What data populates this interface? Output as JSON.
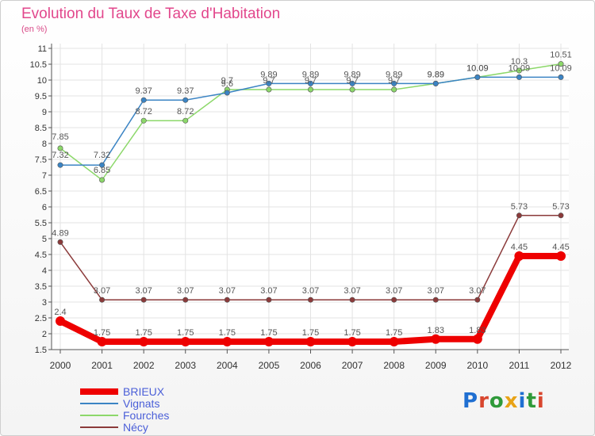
{
  "header": {
    "title": "Evolution du Taux de Taxe d'Habitation",
    "subtitle": "(en %)"
  },
  "brand": {
    "text": "Proxiti",
    "colors": [
      "#1f6fd1",
      "#d8462e",
      "#2f9a3a",
      "#e8a317",
      "#1f6fd1",
      "#2f9a3a",
      "#d8462e"
    ]
  },
  "chart_data": {
    "type": "line",
    "title": "Evolution du Taux de Taxe d'Habitation",
    "ylabel": "(en %)",
    "xlabel": "",
    "ylim": [
      1.5,
      11
    ],
    "yticks": [
      "1.5",
      "2",
      "2.5",
      "3",
      "3.5",
      "4",
      "4.5",
      "5",
      "5.5",
      "6",
      "6.5",
      "7",
      "7.5",
      "8",
      "8.5",
      "9",
      "9.5",
      "10",
      "10.5",
      "11"
    ],
    "categories": [
      "2000",
      "2001",
      "2002",
      "2003",
      "2004",
      "2005",
      "2006",
      "2007",
      "2008",
      "2009",
      "2010",
      "2011",
      "2012"
    ],
    "grid": true,
    "legend_position": "bottom-left",
    "series": [
      {
        "name": "BRIEUX",
        "color": "#ee0000",
        "values": [
          2.4,
          1.75,
          1.75,
          1.75,
          1.75,
          1.75,
          1.75,
          1.75,
          1.75,
          1.83,
          1.83,
          4.45,
          4.45
        ],
        "labels": [
          "2.4",
          "1.75",
          "1.75",
          "1.75",
          "1.75",
          "1.75",
          "1.75",
          "1.75",
          "1.75",
          "1.83",
          "1.83",
          "4.45",
          "4.45"
        ]
      },
      {
        "name": "Vignats",
        "color": "#3b84c4",
        "values": [
          7.32,
          7.32,
          9.37,
          9.37,
          9.6,
          9.89,
          9.89,
          9.89,
          9.89,
          9.89,
          10.09,
          10.09,
          10.09
        ],
        "labels": [
          "7.32",
          "7.32",
          "9.37",
          "9.37",
          "9.6",
          "9.89",
          "9.89",
          "9.89",
          "9.89",
          "9.89",
          "10.09",
          "10.09",
          "10.09"
        ]
      },
      {
        "name": "Fourches",
        "color": "#8cd86a",
        "values": [
          7.85,
          6.85,
          8.72,
          8.72,
          9.7,
          9.7,
          9.7,
          9.7,
          9.7,
          9.89,
          10.09,
          10.3,
          10.51
        ],
        "labels": [
          "7.85",
          "6.85",
          "8.72",
          "8.72",
          "9.7",
          "9.7",
          "9.7",
          "9.7",
          "9.7",
          "9.89",
          "10.09",
          "10.3",
          "10.51"
        ]
      },
      {
        "name": "Nécy",
        "color": "#8b3a3a",
        "values": [
          4.89,
          3.07,
          3.07,
          3.07,
          3.07,
          3.07,
          3.07,
          3.07,
          3.07,
          3.07,
          3.07,
          5.73,
          5.73
        ],
        "labels": [
          "4.89",
          "3.07",
          "3.07",
          "3.07",
          "3.07",
          "3.07",
          "3.07",
          "3.07",
          "3.07",
          "3.07",
          "3.07",
          "5.73",
          "5.73"
        ]
      }
    ]
  }
}
